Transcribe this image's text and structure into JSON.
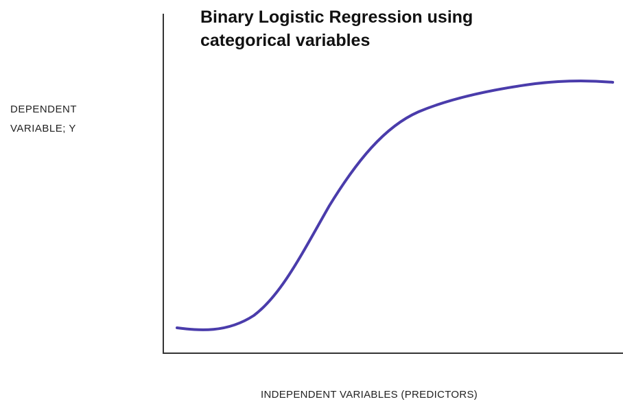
{
  "title": "Binary Logistic Regression using categorical variables",
  "y_axis_label": "DEPENDENT VARIABLE; Y",
  "x_axis_label": "INDEPENDENT VARIABLES (PREDICTORS)"
}
